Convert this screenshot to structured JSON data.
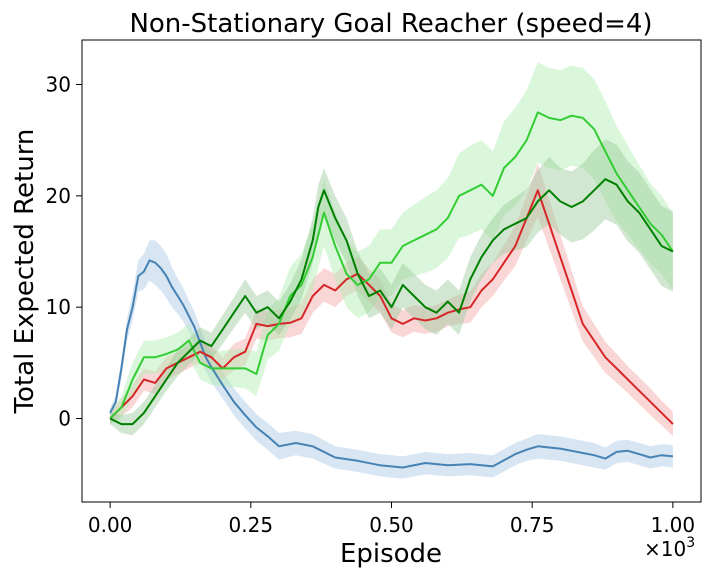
{
  "chart_data": {
    "type": "line",
    "title": "Non-Stationary Goal Reacher (speed=4)",
    "xlabel": "Episode",
    "ylabel": "Total Expected Return",
    "x_scale_text": "×10",
    "x_scale_exp": "3",
    "xlim": [
      -0.05,
      1.05
    ],
    "ylim": [
      -7.5,
      34
    ],
    "xticks": [
      0.0,
      0.25,
      0.5,
      0.75,
      1.0
    ],
    "xtick_labels": [
      "0.00",
      "0.25",
      "0.50",
      "0.75",
      "1.00"
    ],
    "yticks": [
      0,
      10,
      20,
      30
    ],
    "ytick_labels": [
      "0",
      "10",
      "20",
      "30"
    ],
    "grid": false,
    "series": [
      {
        "color": "#4682b4",
        "band_color": "#a9c6e2",
        "x": [
          0.0,
          0.01,
          0.02,
          0.03,
          0.04,
          0.05,
          0.06,
          0.07,
          0.08,
          0.09,
          0.1,
          0.11,
          0.12,
          0.13,
          0.14,
          0.15,
          0.16,
          0.17,
          0.18,
          0.19,
          0.2,
          0.22,
          0.24,
          0.26,
          0.28,
          0.3,
          0.33,
          0.36,
          0.4,
          0.44,
          0.48,
          0.52,
          0.56,
          0.6,
          0.64,
          0.68,
          0.72,
          0.74,
          0.76,
          0.78,
          0.8,
          0.82,
          0.84,
          0.86,
          0.88,
          0.9,
          0.92,
          0.94,
          0.96,
          0.98,
          1.0
        ],
        "y": [
          0.5,
          1.5,
          4.5,
          8.0,
          10.0,
          12.8,
          13.2,
          14.2,
          14.0,
          13.5,
          12.8,
          11.8,
          11.0,
          10.2,
          9.2,
          8.2,
          6.8,
          5.5,
          4.6,
          3.8,
          3.0,
          1.5,
          0.3,
          -0.8,
          -1.6,
          -2.5,
          -2.2,
          -2.5,
          -3.5,
          -3.8,
          -4.2,
          -4.4,
          -4.0,
          -4.2,
          -4.1,
          -4.3,
          -3.2,
          -2.8,
          -2.5,
          -2.6,
          -2.7,
          -2.9,
          -3.1,
          -3.3,
          -3.6,
          -3.0,
          -2.9,
          -3.2,
          -3.5,
          -3.3,
          -3.4
        ],
        "band": [
          0.4,
          0.6,
          0.8,
          1.0,
          1.2,
          1.4,
          1.6,
          1.8,
          2.0,
          2.0,
          2.0,
          1.8,
          1.6,
          1.5,
          1.4,
          1.4,
          1.4,
          1.3,
          1.3,
          1.3,
          1.2,
          1.2,
          1.2,
          1.2,
          1.2,
          1.2,
          1.1,
          1.1,
          1.0,
          1.0,
          1.0,
          1.0,
          1.0,
          1.0,
          1.0,
          1.0,
          1.0,
          1.0,
          1.1,
          1.1,
          1.1,
          1.1,
          1.1,
          1.1,
          1.0,
          1.0,
          1.0,
          1.0,
          1.0,
          1.0,
          1.0
        ]
      },
      {
        "color": "#d62728",
        "band_color": "#f4a6a7",
        "x": [
          0.0,
          0.02,
          0.04,
          0.06,
          0.08,
          0.1,
          0.12,
          0.14,
          0.16,
          0.18,
          0.2,
          0.22,
          0.24,
          0.26,
          0.28,
          0.3,
          0.32,
          0.34,
          0.36,
          0.38,
          0.4,
          0.42,
          0.44,
          0.46,
          0.48,
          0.5,
          0.52,
          0.54,
          0.56,
          0.58,
          0.6,
          0.62,
          0.64,
          0.66,
          0.68,
          0.7,
          0.72,
          0.74,
          0.76,
          0.78,
          0.8,
          0.82,
          0.84,
          0.86,
          0.88,
          0.9,
          0.92,
          0.94,
          0.96,
          0.98,
          1.0
        ],
        "y": [
          0.0,
          1.0,
          2.0,
          3.5,
          3.2,
          4.5,
          5.0,
          5.5,
          6.0,
          5.5,
          4.5,
          5.5,
          6.0,
          8.5,
          8.3,
          8.5,
          8.6,
          9.0,
          11.0,
          12.0,
          11.5,
          12.5,
          13.0,
          12.0,
          11.0,
          9.0,
          8.5,
          9.0,
          8.8,
          9.0,
          9.5,
          9.8,
          10.0,
          11.5,
          12.5,
          14.0,
          15.5,
          18.0,
          20.5,
          17.5,
          14.5,
          11.5,
          8.5,
          7.0,
          5.5,
          4.5,
          3.5,
          2.5,
          1.5,
          0.5,
          -0.5
        ],
        "band": [
          0.5,
          0.8,
          1.0,
          1.0,
          1.0,
          1.0,
          1.0,
          1.0,
          1.0,
          1.0,
          1.0,
          1.2,
          1.2,
          1.3,
          1.3,
          1.3,
          1.3,
          1.4,
          1.5,
          1.5,
          1.5,
          1.5,
          1.5,
          1.5,
          1.5,
          1.3,
          1.2,
          1.2,
          1.2,
          1.2,
          1.2,
          1.3,
          1.4,
          1.5,
          1.5,
          1.6,
          1.8,
          2.0,
          2.4,
          2.2,
          2.0,
          1.8,
          1.6,
          1.5,
          1.4,
          1.3,
          1.2,
          1.2,
          1.2,
          1.1,
          1.1
        ]
      },
      {
        "color": "#32cd32",
        "band_color": "#b0edb0",
        "x": [
          0.0,
          0.02,
          0.04,
          0.06,
          0.08,
          0.1,
          0.12,
          0.14,
          0.16,
          0.18,
          0.2,
          0.22,
          0.24,
          0.26,
          0.28,
          0.3,
          0.32,
          0.34,
          0.36,
          0.38,
          0.4,
          0.42,
          0.44,
          0.46,
          0.48,
          0.5,
          0.52,
          0.54,
          0.56,
          0.58,
          0.6,
          0.62,
          0.64,
          0.66,
          0.68,
          0.7,
          0.72,
          0.74,
          0.76,
          0.78,
          0.8,
          0.82,
          0.84,
          0.86,
          0.88,
          0.9,
          0.92,
          0.94,
          0.96,
          0.98,
          1.0
        ],
        "y": [
          0.0,
          1.0,
          3.5,
          5.5,
          5.5,
          5.8,
          6.2,
          7.0,
          5.0,
          4.5,
          4.5,
          4.5,
          4.5,
          4.0,
          7.5,
          8.5,
          11.0,
          12.0,
          14.5,
          18.5,
          15.5,
          13.0,
          12.0,
          12.5,
          14.0,
          14.0,
          15.5,
          16.0,
          16.5,
          17.0,
          18.0,
          20.0,
          20.5,
          21.0,
          20.0,
          22.5,
          23.5,
          25.0,
          27.5,
          27.0,
          26.8,
          27.2,
          27.0,
          26.0,
          24.0,
          22.0,
          20.5,
          19.0,
          17.5,
          16.5,
          15.0
        ],
        "band": [
          0.5,
          1.0,
          1.5,
          1.5,
          1.5,
          1.5,
          1.5,
          1.5,
          1.5,
          1.5,
          1.6,
          1.7,
          1.8,
          2.0,
          2.2,
          2.4,
          2.6,
          2.8,
          3.0,
          3.0,
          3.0,
          3.0,
          3.0,
          3.0,
          3.0,
          3.0,
          3.0,
          3.2,
          3.4,
          3.5,
          3.6,
          3.8,
          4.0,
          4.0,
          4.0,
          4.2,
          4.4,
          4.5,
          4.5,
          4.5,
          4.5,
          4.5,
          4.5,
          4.5,
          4.5,
          4.3,
          4.0,
          3.8,
          3.6,
          3.5,
          3.5
        ]
      },
      {
        "color": "#008000",
        "band_color": "#99c999",
        "x": [
          0.0,
          0.02,
          0.04,
          0.06,
          0.08,
          0.1,
          0.12,
          0.14,
          0.16,
          0.18,
          0.2,
          0.22,
          0.24,
          0.26,
          0.28,
          0.3,
          0.32,
          0.34,
          0.36,
          0.37,
          0.38,
          0.4,
          0.42,
          0.44,
          0.46,
          0.48,
          0.5,
          0.52,
          0.54,
          0.56,
          0.58,
          0.6,
          0.62,
          0.64,
          0.66,
          0.68,
          0.7,
          0.72,
          0.74,
          0.76,
          0.78,
          0.8,
          0.82,
          0.84,
          0.86,
          0.88,
          0.9,
          0.92,
          0.94,
          0.96,
          0.98,
          1.0
        ],
        "y": [
          0.0,
          -0.5,
          -0.5,
          0.5,
          2.0,
          3.5,
          5.0,
          6.0,
          7.0,
          6.5,
          8.0,
          9.5,
          11.0,
          9.5,
          10.0,
          9.0,
          10.5,
          12.5,
          16.0,
          19.0,
          20.5,
          18.0,
          16.0,
          13.0,
          11.0,
          11.5,
          10.0,
          12.0,
          11.0,
          10.0,
          9.5,
          10.5,
          9.5,
          12.5,
          14.5,
          16.0,
          17.0,
          17.5,
          18.0,
          19.5,
          20.5,
          19.5,
          19.0,
          19.5,
          20.5,
          21.5,
          21.0,
          19.5,
          18.5,
          17.0,
          15.5,
          15.0
        ],
        "band": [
          0.5,
          0.8,
          1.0,
          1.0,
          1.0,
          1.0,
          1.2,
          1.2,
          1.2,
          1.2,
          1.3,
          1.4,
          1.5,
          1.5,
          1.5,
          1.5,
          1.6,
          1.8,
          2.0,
          2.0,
          2.0,
          2.0,
          2.0,
          2.0,
          2.0,
          2.0,
          2.0,
          2.0,
          2.0,
          2.0,
          2.0,
          2.0,
          2.0,
          2.0,
          2.0,
          2.0,
          2.2,
          2.4,
          2.6,
          2.8,
          3.0,
          3.0,
          3.2,
          3.4,
          3.6,
          3.6,
          3.6,
          3.6,
          3.6,
          3.6,
          3.6,
          3.6
        ]
      }
    ]
  }
}
